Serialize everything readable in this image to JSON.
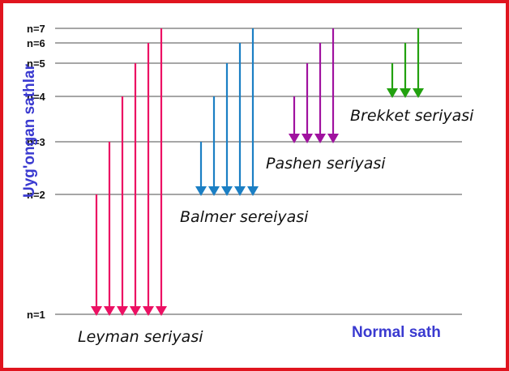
{
  "y_axis_title": "Uyg'ongan sathlar",
  "ground_label": "Normal sath",
  "colors": {
    "frame": "#e0141e",
    "axis_title": "#3a3ad0",
    "levels": "#888888"
  },
  "levels": [
    {
      "n": 1,
      "label": "n=1"
    },
    {
      "n": 2,
      "label": "n=2"
    },
    {
      "n": 3,
      "label": "n=3"
    },
    {
      "n": 4,
      "label": "n=4"
    },
    {
      "n": 5,
      "label": "n=5"
    },
    {
      "n": 6,
      "label": "n=6"
    },
    {
      "n": 7,
      "label": "n=7"
    }
  ],
  "series": [
    {
      "name": "Leyman seriyasi",
      "color": "#ec1063",
      "to": 1,
      "from": [
        2,
        3,
        4,
        5,
        6,
        7
      ]
    },
    {
      "name": "Balmer sereiyasi",
      "color": "#1b7fc4",
      "to": 2,
      "from": [
        3,
        4,
        5,
        6,
        7
      ]
    },
    {
      "name": "Pashen seriyasi",
      "color": "#a0129f",
      "to": 3,
      "from": [
        4,
        5,
        6,
        7
      ]
    },
    {
      "name": "Brekket seriyasi",
      "color": "#22a10f",
      "to": 4,
      "from": [
        5,
        6,
        7
      ]
    }
  ]
}
